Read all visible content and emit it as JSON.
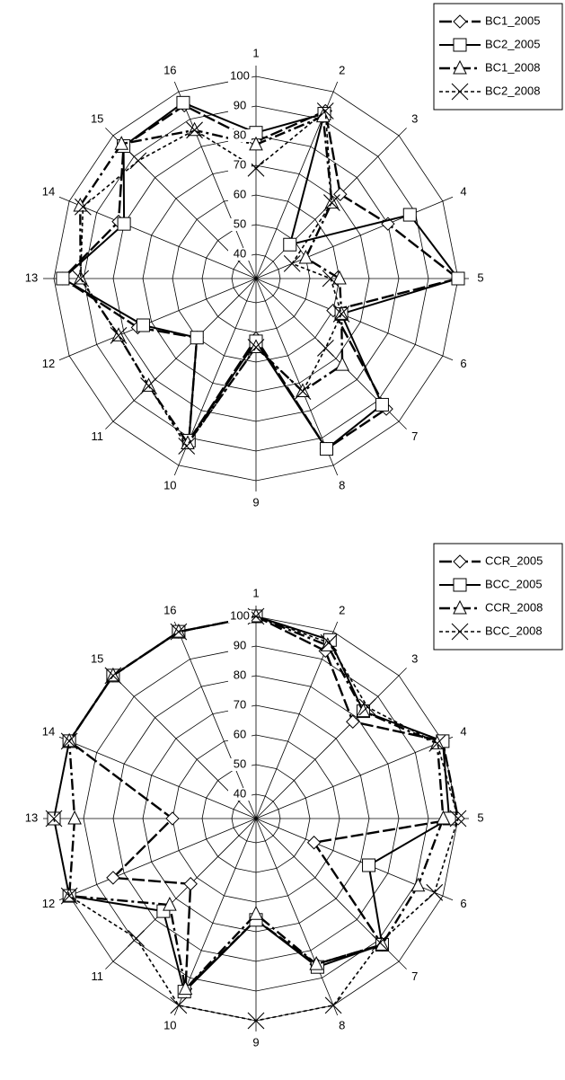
{
  "chart_data": [
    {
      "type": "radar",
      "categories": [
        "1",
        "2",
        "3",
        "4",
        "5",
        "6",
        "7",
        "8",
        "9",
        "10",
        "11",
        "12",
        "13",
        "14",
        "15",
        "16"
      ],
      "rlim": [
        40,
        100
      ],
      "ticks": [
        "40",
        "50",
        "60",
        "70",
        "80",
        "90",
        "100"
      ],
      "grid": true,
      "legend": "top-right",
      "series": [
        {
          "name": "BC1_2005",
          "style": "dash-long",
          "marker": "diamond",
          "values": [
            78,
            93,
            72,
            80,
            100,
            60,
            94,
            94,
            52,
            91,
            60,
            75,
            97,
            82,
            95,
            95
          ]
        },
        {
          "name": "BC2_2005",
          "style": "solid",
          "marker": "square",
          "values": [
            81,
            92,
            48,
            88,
            100,
            63,
            92,
            94,
            53,
            91,
            60,
            73,
            97,
            80,
            95,
            96
          ]
        },
        {
          "name": "BC1_2008",
          "style": "dash-dot",
          "marker": "triangle",
          "values": [
            77,
            91,
            68,
            50,
            60,
            63,
            73,
            73,
            55,
            92,
            83,
            82,
            91,
            96,
            96,
            86
          ]
        },
        {
          "name": "BC2_2008",
          "style": "dotted",
          "marker": "x",
          "values": [
            69,
            93,
            68,
            45,
            57,
            63,
            65,
            73,
            55,
            93,
            83,
            82,
            91,
            95,
            88,
            86
          ]
        }
      ]
    },
    {
      "type": "radar",
      "categories": [
        "1",
        "2",
        "3",
        "4",
        "5",
        "6",
        "7",
        "8",
        "9",
        "10",
        "11",
        "12",
        "13",
        "14",
        "15",
        "16"
      ],
      "rlim": [
        40,
        100
      ],
      "ticks": [
        "40",
        "50",
        "60",
        "70",
        "80",
        "90",
        "100"
      ],
      "grid": true,
      "legend": "top-right",
      "series": [
        {
          "name": "CCR_2005",
          "style": "dash-long",
          "marker": "diamond",
          "values": [
            100,
            93,
            78,
            100,
            100,
            53,
            92,
            85,
            66,
            94,
            63,
            84,
            60,
            100,
            100,
            100
          ]
        },
        {
          "name": "BCC_2005",
          "style": "solid",
          "marker": "square",
          "values": [
            100,
            97,
            83,
            100,
            97,
            73,
            92,
            86,
            66,
            95,
            76,
            100,
            100,
            100,
            100,
            100
          ]
        },
        {
          "name": "CCR_2008",
          "style": "dash-dot",
          "marker": "triangle",
          "values": [
            100,
            95,
            83,
            98,
            95,
            91,
            92,
            85,
            64,
            94,
            73,
            100,
            93,
            100,
            100,
            100
          ]
        },
        {
          "name": "BCC_2008",
          "style": "dotted",
          "marker": "x",
          "values": [
            100,
            96,
            85,
            98,
            100,
            97,
            91,
            100,
            100,
            100,
            89,
            100,
            100,
            100,
            100,
            100
          ]
        }
      ]
    }
  ]
}
